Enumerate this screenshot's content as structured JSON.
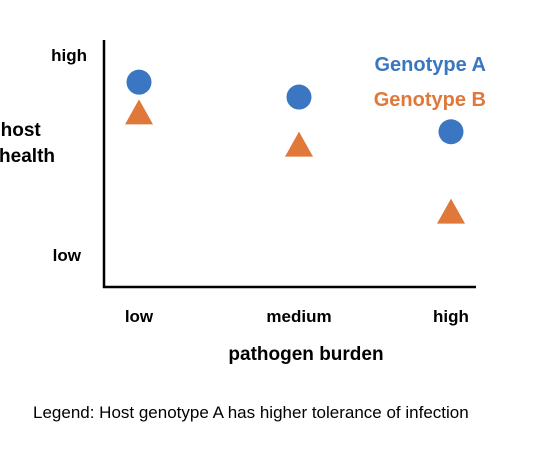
{
  "chart_data": {
    "type": "scatter",
    "title": "",
    "xlabel": "pathogen burden",
    "ylabel": "host health",
    "categories": [
      "low",
      "medium",
      "high"
    ],
    "y_ticks": [
      "high",
      "low"
    ],
    "ylim": [
      0,
      1
    ],
    "grid": false,
    "legend_position": "top-right",
    "series": [
      {
        "name": "Genotype A",
        "marker": "circle",
        "color": "#3a76c1",
        "values": [
          0.83,
          0.77,
          0.63
        ]
      },
      {
        "name": "Genotype B",
        "marker": "triangle",
        "color": "#df7838",
        "values": [
          0.71,
          0.58,
          0.31
        ]
      }
    ]
  },
  "caption": "Legend: Host genotype A has higher tolerance of infection"
}
